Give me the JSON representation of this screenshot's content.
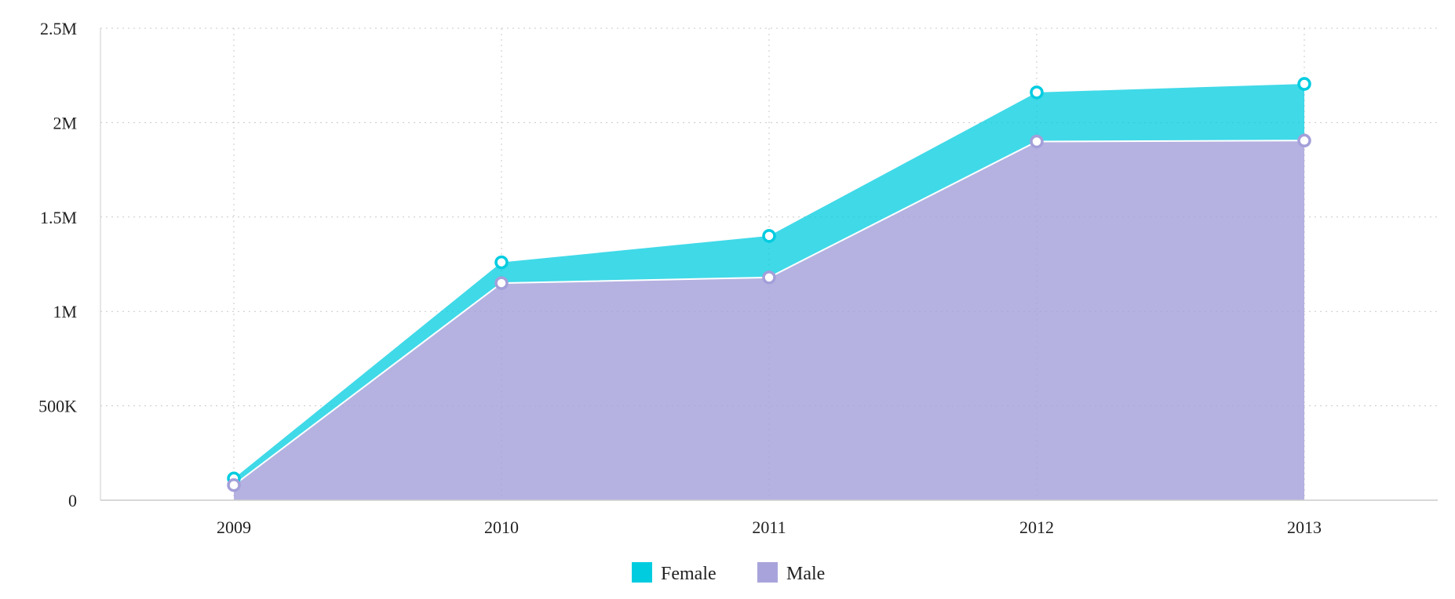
{
  "chart_data": {
    "type": "area",
    "stacked": true,
    "categories": [
      "2009",
      "2010",
      "2011",
      "2012",
      "2013"
    ],
    "series": [
      {
        "name": "Male",
        "values": [
          80000,
          1150000,
          1180000,
          1900000,
          1905000
        ],
        "color": "#a39fd9"
      },
      {
        "name": "Female",
        "values": [
          35000,
          110000,
          220000,
          260000,
          300000
        ],
        "color": "#00cce0"
      }
    ],
    "ylim": [
      0,
      2500000
    ],
    "y_ticks": [
      0,
      500000,
      1000000,
      1500000,
      2000000,
      2500000
    ],
    "y_tick_labels": [
      "0",
      "500K",
      "1M",
      "1.5M",
      "2M",
      "2.5M"
    ],
    "grid": true,
    "legend": [
      "Female",
      "Male"
    ],
    "legend_position": "bottom-center"
  }
}
